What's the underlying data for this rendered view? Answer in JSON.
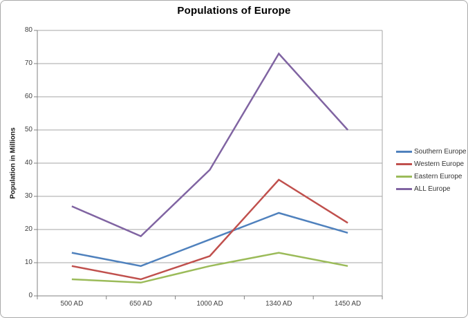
{
  "window": {
    "background": "#ffffff",
    "frame_border_color": "#a9a9a9"
  },
  "chart_data": {
    "type": "line",
    "title": "Populations of Europe",
    "xlabel": "",
    "ylabel": "Population in Millions",
    "categories": [
      "500 AD",
      "650 AD",
      "1000 AD",
      "1340 AD",
      "1450 AD"
    ],
    "series": [
      {
        "name": "Southern Europe",
        "color": "#4F81BD",
        "values": [
          13,
          9,
          17,
          25,
          19
        ]
      },
      {
        "name": "Western Europe",
        "color": "#C0504D",
        "values": [
          9,
          5,
          12,
          35,
          22
        ]
      },
      {
        "name": "Eastern Europe",
        "color": "#9BBB59",
        "values": [
          5,
          4,
          9,
          13,
          9
        ]
      },
      {
        "name": "ALL Europe",
        "color": "#8064A2",
        "values": [
          27,
          18,
          38,
          73,
          50
        ]
      }
    ],
    "ylim": [
      0,
      80
    ],
    "ytick_step": 10,
    "grid": true,
    "legend_position": "right",
    "gridline_color": "#a6a6a6",
    "axis_color": "#808080",
    "tick_label_color": "#404040"
  }
}
